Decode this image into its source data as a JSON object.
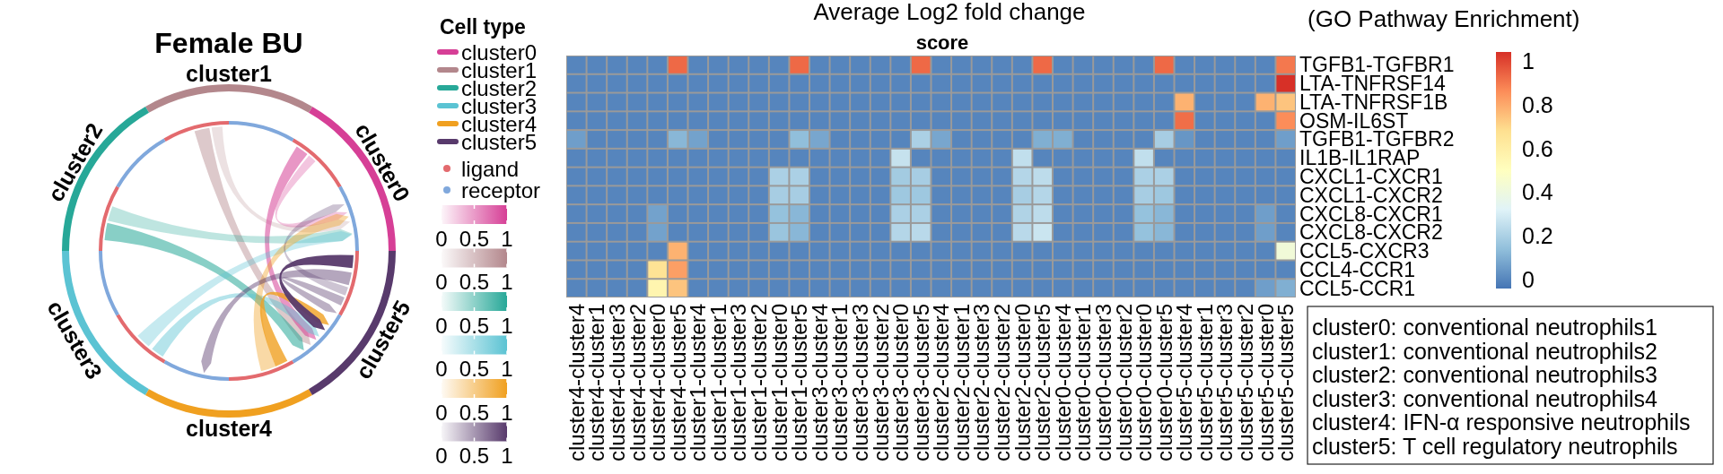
{
  "chart_data": [
    {
      "type": "other",
      "title": "Female BU",
      "categories": [
        "cluster0",
        "cluster1",
        "cluster2",
        "cluster3",
        "cluster4",
        "cluster5"
      ],
      "colors": [
        "#d63f96",
        "#b3878c",
        "#27a898",
        "#5bc3d3",
        "#f0a020",
        "#583a6c"
      ],
      "legend_title": "Cell type",
      "annotations": [
        "ligand",
        "receptor",
        "0",
        "0.5",
        "1"
      ]
    },
    {
      "type": "heatmap",
      "title": "score",
      "categories": [
        "cluster4-cluster4",
        "cluster4-cluster1",
        "cluster4-cluster3",
        "cluster4-cluster2",
        "cluster4-cluster0",
        "cluster4-cluster5",
        "cluster1-cluster4",
        "cluster1-cluster1",
        "cluster1-cluster3",
        "cluster1-cluster2",
        "cluster1-cluster0",
        "cluster1-cluster5",
        "cluster3-cluster4",
        "cluster3-cluster1",
        "cluster3-cluster3",
        "cluster3-cluster2",
        "cluster3-cluster0",
        "cluster3-cluster5",
        "cluster2-cluster4",
        "cluster2-cluster1",
        "cluster2-cluster3",
        "cluster2-cluster2",
        "cluster2-cluster0",
        "cluster2-cluster5",
        "cluster0-cluster4",
        "cluster0-cluster1",
        "cluster0-cluster3",
        "cluster0-cluster2",
        "cluster0-cluster0",
        "cluster0-cluster5",
        "cluster5-cluster4",
        "cluster5-cluster1",
        "cluster5-cluster3",
        "cluster5-cluster2",
        "cluster5-cluster0",
        "cluster5-cluster5"
      ],
      "y_categories": [
        "TGFB1-TGFBR1",
        "LTA-TNFRSF14",
        "LTA-TNFRSF1B",
        "OSM-IL6ST",
        "TGFB1-TGFBR2",
        "IL1B-IL1RAP",
        "CXCL1-CXCR1",
        "CXCL1-CXCR2",
        "CXCL8-CXCR1",
        "CXCL8-CXCR2",
        "CCL5-CXCR3",
        "CCL4-CCR1",
        "CCL5-CCR1"
      ],
      "cells": [
        [
          0,
          0,
          0,
          0,
          0,
          0.93,
          0,
          0,
          0,
          0,
          0,
          0.93,
          0,
          0,
          0,
          0,
          0,
          0.93,
          0,
          0,
          0,
          0,
          0,
          0.93,
          0,
          0,
          0,
          0,
          0,
          0.93,
          0,
          0,
          0,
          0,
          0,
          0.9
        ],
        [
          0,
          0,
          0,
          0,
          0,
          0,
          0,
          0,
          0,
          0,
          0,
          0,
          0,
          0,
          0,
          0,
          0,
          0,
          0,
          0,
          0,
          0,
          0,
          0,
          0,
          0,
          0,
          0,
          0,
          0,
          0,
          0,
          0,
          0,
          0,
          1.04
        ],
        [
          0,
          0,
          0,
          0,
          0,
          0,
          0,
          0,
          0,
          0,
          0,
          0,
          0,
          0,
          0,
          0,
          0,
          0,
          0,
          0,
          0,
          0,
          0,
          0,
          0,
          0,
          0,
          0,
          0,
          0,
          0.78,
          0,
          0,
          0,
          0.78,
          0.74
        ],
        [
          0,
          0,
          0,
          0,
          0,
          0,
          0,
          0,
          0,
          0,
          0,
          0,
          0,
          0,
          0,
          0,
          0,
          0,
          0,
          0,
          0,
          0,
          0,
          0,
          0,
          0,
          0,
          0,
          0,
          0,
          0.92,
          0,
          0,
          0,
          0,
          0.86
        ],
        [
          0.06,
          0,
          0,
          0,
          0,
          0.12,
          0.07,
          0,
          0,
          0,
          0,
          0.14,
          0.08,
          0,
          0,
          0,
          0,
          0.2,
          0.08,
          0,
          0,
          0,
          0,
          0.1,
          0.1,
          0,
          0,
          0,
          0,
          0.19,
          0.04,
          0,
          0,
          0,
          0,
          0.06
        ],
        [
          0,
          0,
          0,
          0,
          0,
          0,
          0,
          0,
          0,
          0,
          0,
          0,
          0,
          0,
          0,
          0,
          0.26,
          0,
          0,
          0,
          0,
          0,
          0.25,
          0,
          0,
          0,
          0,
          0,
          0.25,
          0,
          0,
          0,
          0,
          0,
          0,
          0
        ],
        [
          0,
          0,
          0,
          0,
          0,
          0,
          0,
          0,
          0,
          0,
          0.2,
          0.2,
          0,
          0,
          0,
          0,
          0.18,
          0.19,
          0,
          0,
          0,
          0,
          0.22,
          0.24,
          0,
          0,
          0,
          0,
          0.2,
          0.2,
          0,
          0,
          0,
          0,
          0,
          0
        ],
        [
          0,
          0,
          0,
          0,
          0,
          0,
          0,
          0,
          0,
          0,
          0.19,
          0.19,
          0,
          0,
          0,
          0,
          0.17,
          0.17,
          0,
          0,
          0,
          0,
          0.19,
          0.22,
          0,
          0,
          0,
          0,
          0.19,
          0.17,
          0,
          0,
          0,
          0,
          0,
          0
        ],
        [
          0,
          0,
          0,
          0,
          0.07,
          0,
          0,
          0,
          0,
          0,
          0.15,
          0.12,
          0,
          0,
          0,
          0,
          0.2,
          0.2,
          0,
          0,
          0,
          0,
          0.21,
          0.24,
          0,
          0,
          0,
          0,
          0.15,
          0.12,
          0,
          0,
          0,
          0,
          0.06,
          0
        ],
        [
          0,
          0,
          0,
          0,
          0.07,
          0,
          0,
          0,
          0,
          0,
          0.16,
          0.12,
          0,
          0,
          0,
          0,
          0.22,
          0.23,
          0,
          0,
          0,
          0,
          0.23,
          0.27,
          0,
          0,
          0,
          0,
          0.15,
          0.12,
          0,
          0,
          0,
          0,
          0.06,
          0
        ],
        [
          0,
          0,
          0,
          0,
          0,
          0.78,
          0,
          0,
          0,
          0,
          0,
          0,
          0,
          0,
          0,
          0,
          0,
          0,
          0,
          0,
          0,
          0,
          0,
          0,
          0,
          0,
          0,
          0,
          0,
          0,
          0,
          0,
          0,
          0,
          0,
          0.42
        ],
        [
          0,
          0,
          0,
          0,
          0.66,
          0.82,
          0,
          0,
          0,
          0,
          0,
          0,
          0,
          0,
          0,
          0,
          0,
          0,
          0,
          0,
          0,
          0,
          0,
          0,
          0,
          0,
          0,
          0,
          0,
          0,
          0,
          0,
          0,
          0,
          0,
          0
        ],
        [
          0,
          0,
          0,
          0,
          0.56,
          0.74,
          0,
          0,
          0,
          0,
          0,
          0,
          0,
          0,
          0,
          0,
          0,
          0,
          0,
          0,
          0,
          0,
          0,
          0,
          0,
          0,
          0,
          0,
          0,
          0,
          0,
          0,
          0,
          0,
          0.06,
          0.1
        ]
      ],
      "clim": [
        -0.04,
        1.04
      ],
      "cticks": [
        0,
        0.2,
        0.4,
        0.6,
        0.8,
        1
      ],
      "annotations": [
        "Average Log2 fold change",
        "(GO Pathway Enrichment)"
      ]
    },
    {
      "type": "other",
      "annotations": [
        "cluster0: conventional neutrophils1",
        "cluster1: conventional neutrophils2",
        "cluster2: conventional neutrophils3",
        "cluster3: conventional neutrophils4",
        "cluster4: IFN-α responsive neutrophils",
        "cluster5: T cell regulatory neutrophils"
      ]
    }
  ]
}
